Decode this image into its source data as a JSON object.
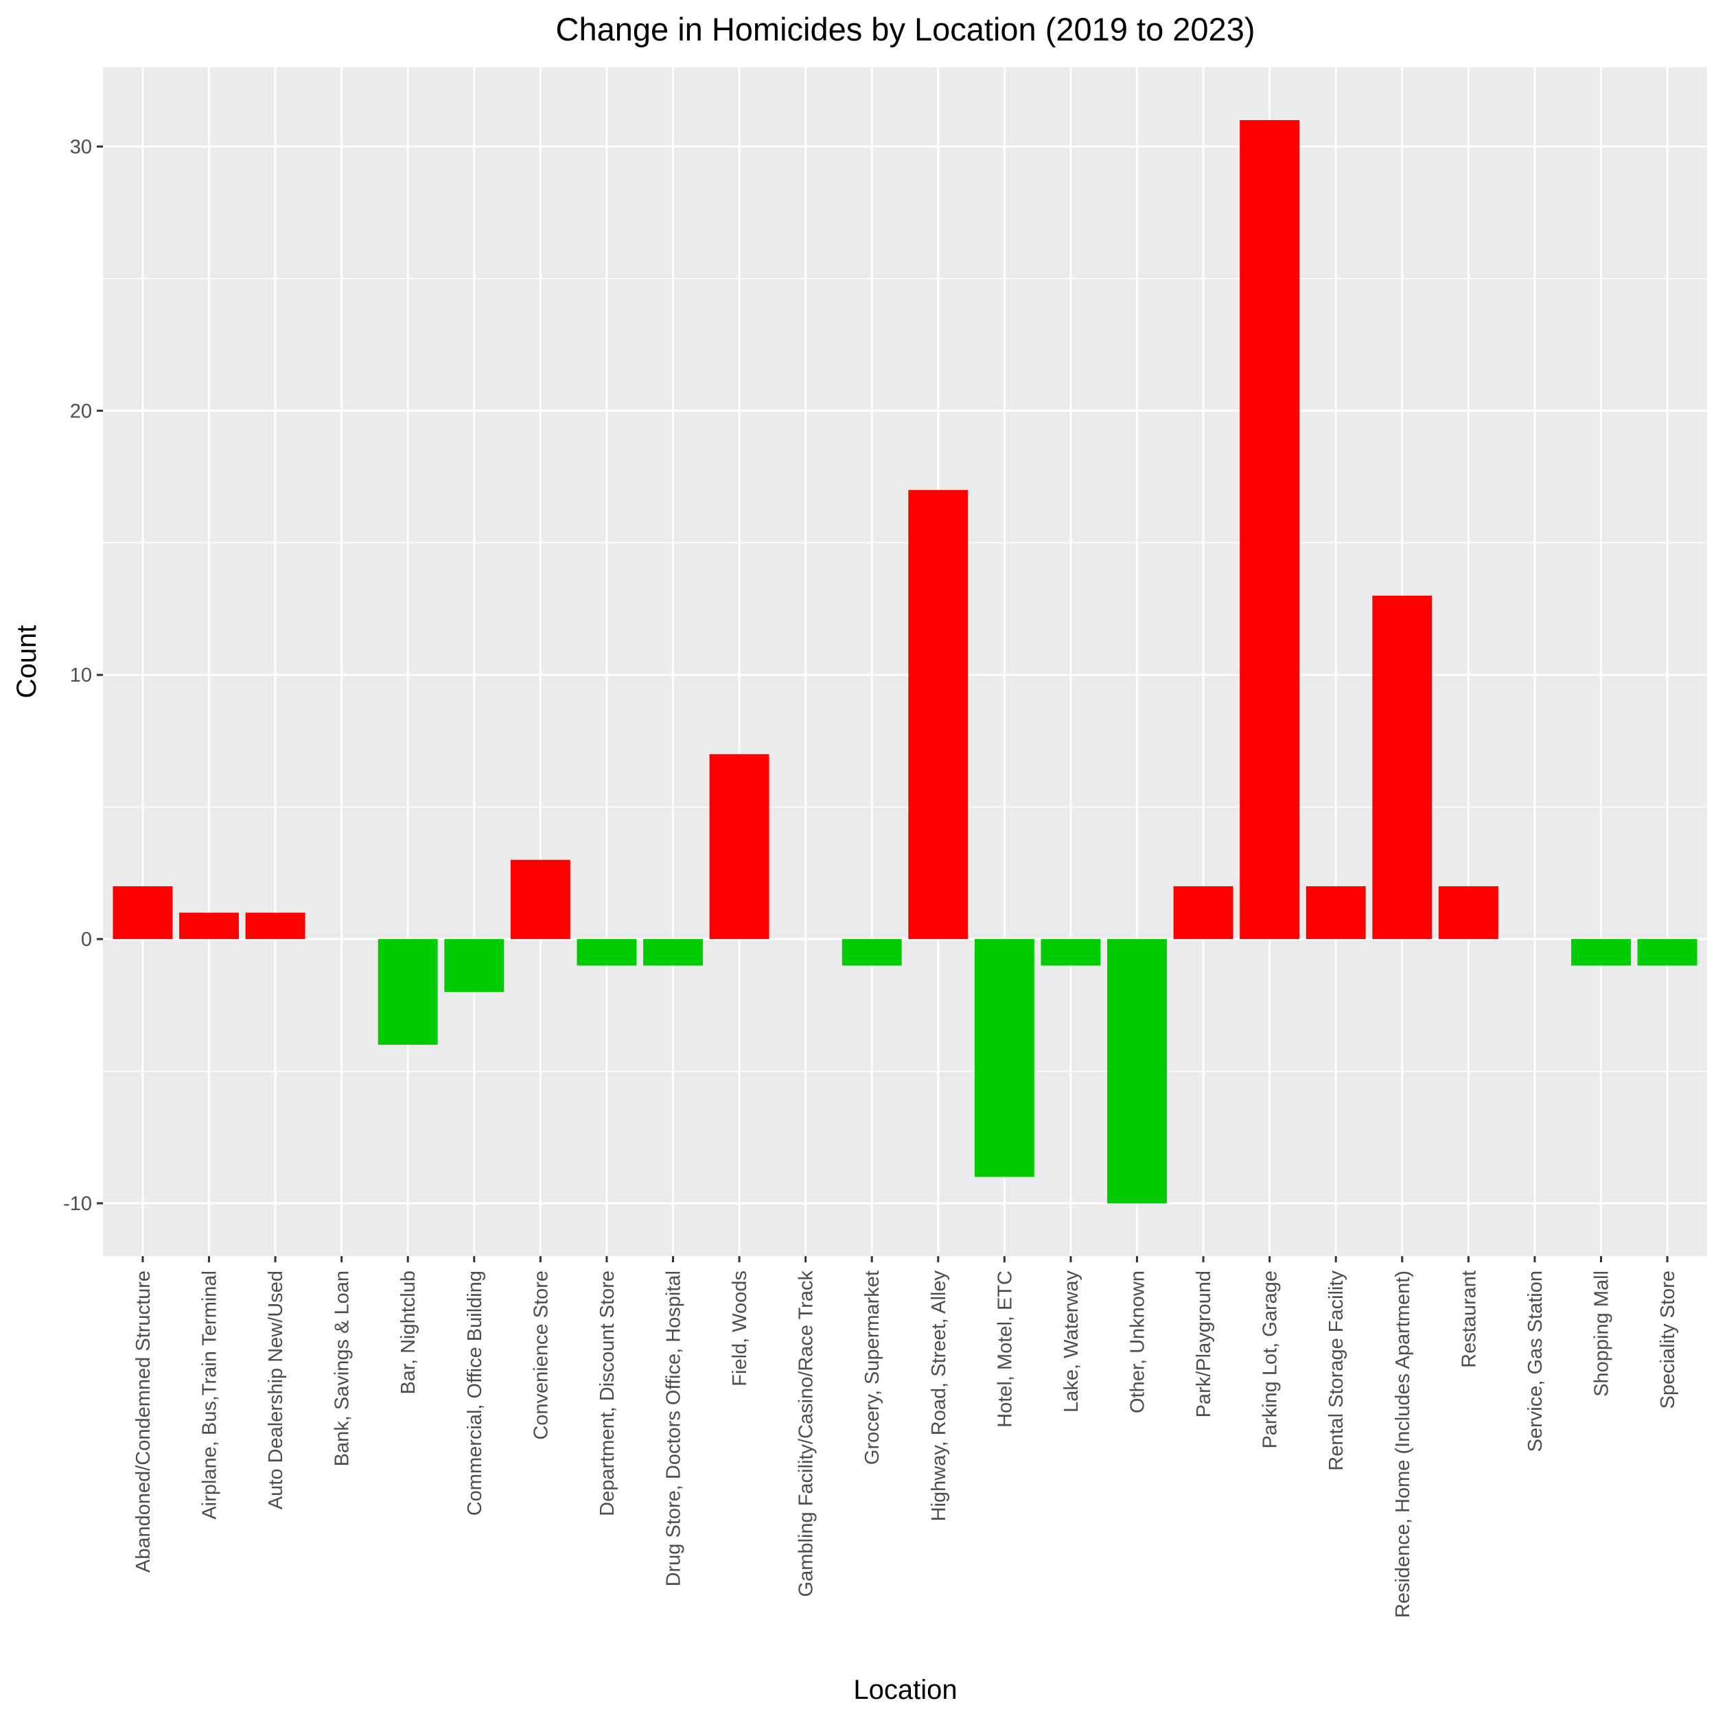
{
  "chart_data": {
    "type": "bar",
    "title": "Change in Homicides by Location (2019 to 2023)",
    "xlabel": "Location",
    "ylabel": "Count",
    "ylim": [
      -12,
      33
    ],
    "yticks": [
      -10,
      0,
      10,
      20,
      30
    ],
    "grid": true,
    "legend": "none",
    "colors": {
      "increase": "#ff0000",
      "decrease": "#00cd00",
      "panel": "#ebebeb",
      "grid": "#ffffff",
      "tick": "#333333"
    },
    "categories": [
      "Abandoned/Condemned Structure",
      "Airplane, Bus,Train Terminal",
      "Auto Dealership New/Used",
      "Bank, Savings & Loan",
      "Bar, Nightclub",
      "Commercial, Office Building",
      "Convenience Store",
      "Department, Discount Store",
      "Drug Store, Doctors Office, Hospital",
      "Field, Woods",
      "Gambling Facility/Casino/Race Track",
      "Grocery, Supermarket",
      "Highway, Road, Street, Alley",
      "Hotel, Motel, ETC",
      "Lake, Waterway",
      "Other, Unknown",
      "Park/Playground",
      "Parking Lot, Garage",
      "Rental Storage Facility",
      "Residence, Home (Includes Apartment)",
      "Restaurant",
      "Service, Gas Station",
      "Shopping Mall",
      "Speciality Store"
    ],
    "values": [
      2,
      1,
      1,
      0,
      -4,
      -2,
      3,
      -1,
      -1,
      7,
      0,
      -1,
      17,
      -9,
      -1,
      -10,
      2,
      31,
      2,
      13,
      2,
      0,
      -1,
      -1
    ]
  }
}
